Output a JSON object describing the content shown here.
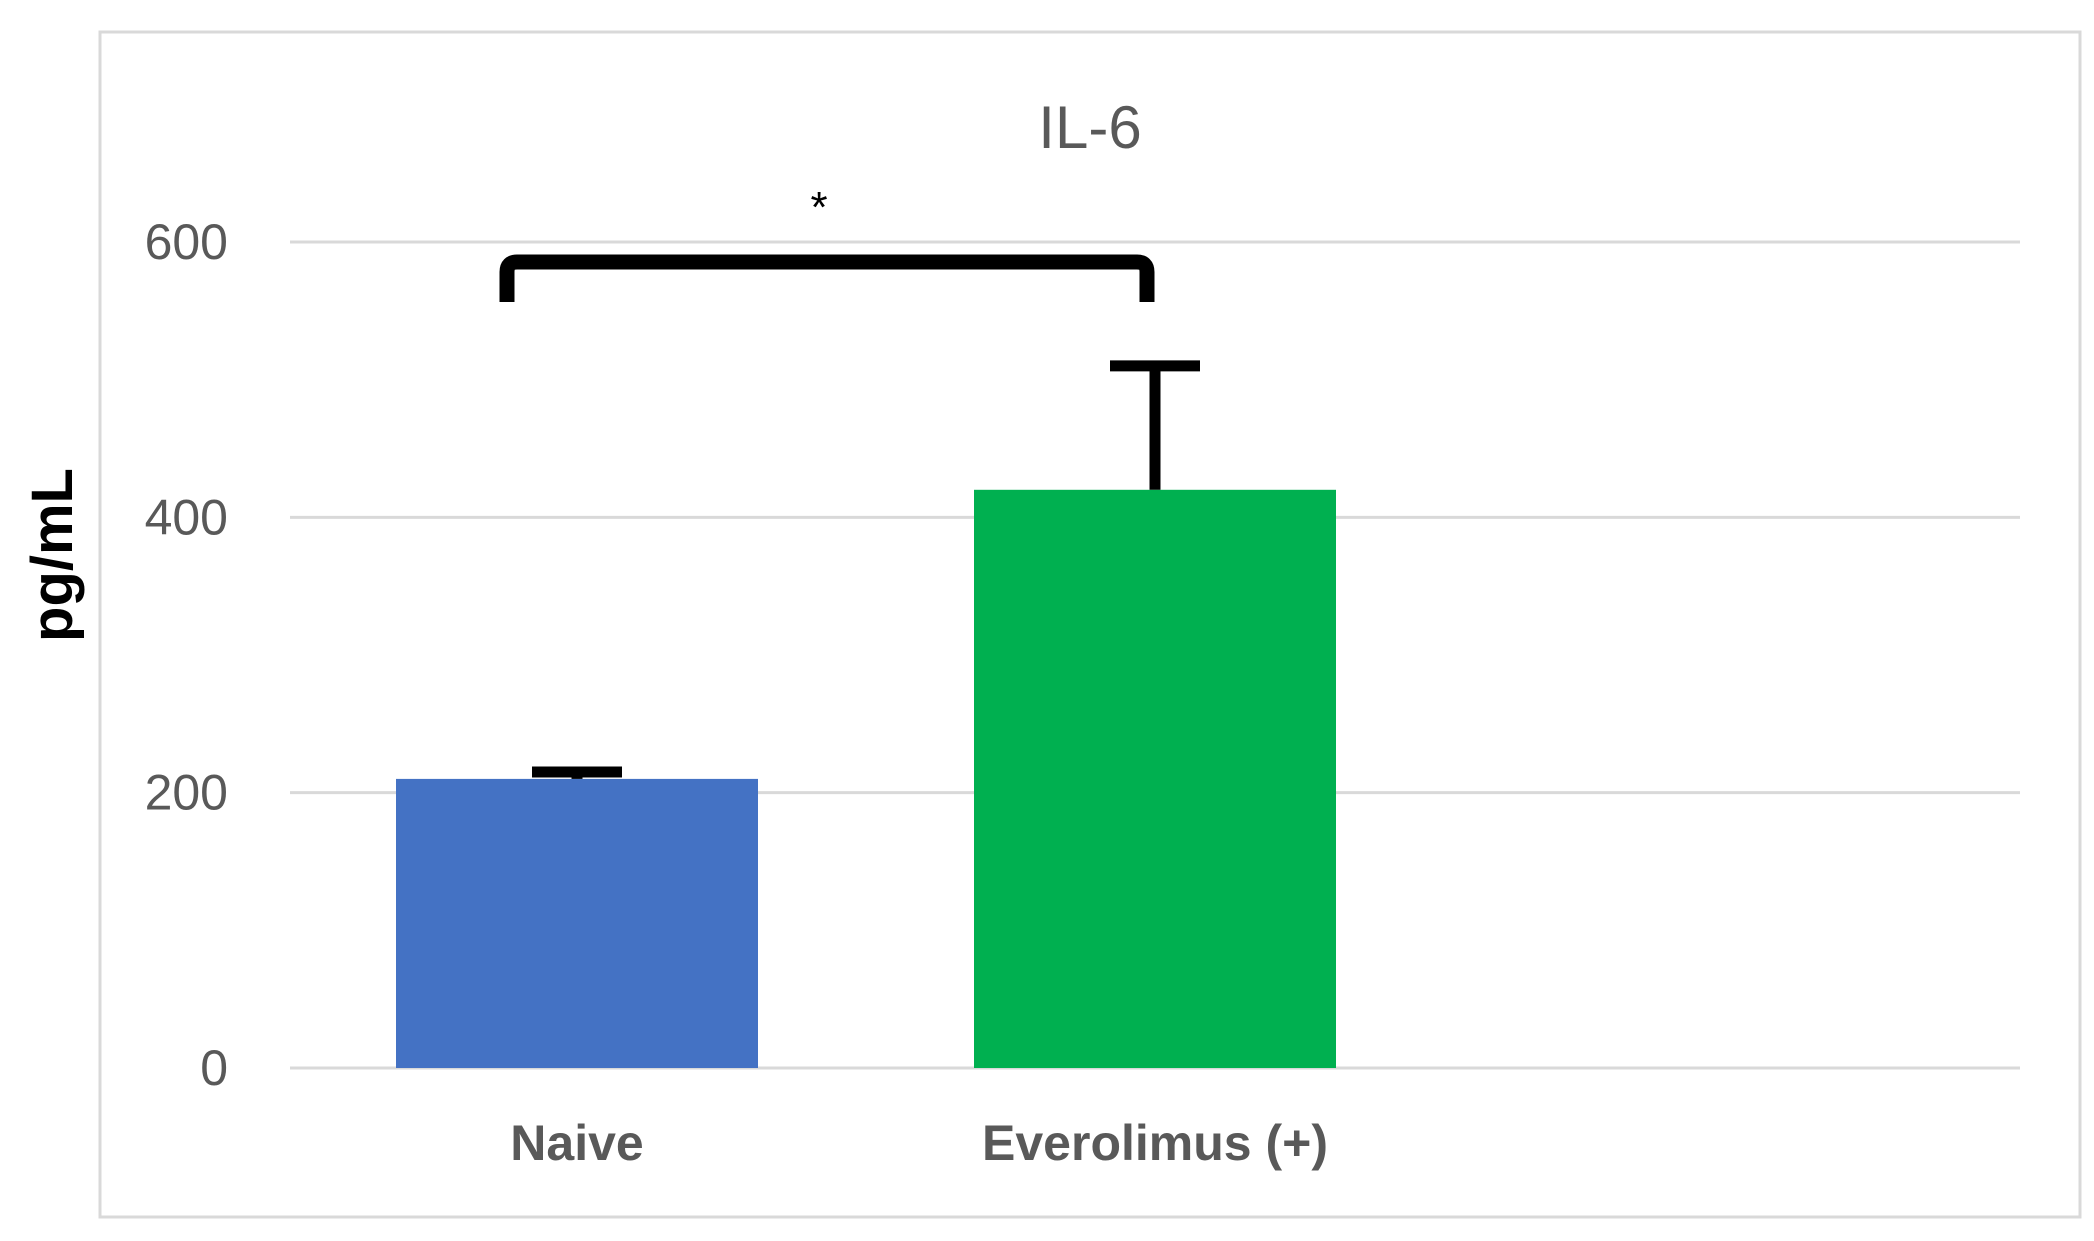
{
  "chart_data": {
    "type": "bar",
    "title": "IL-6",
    "xlabel": "",
    "ylabel": "pg/mL",
    "categories": [
      "Naive",
      "Everolimus (+)"
    ],
    "values": [
      210,
      420
    ],
    "error_plus": [
      5,
      90
    ],
    "colors": [
      "#4472C4",
      "#00B050"
    ],
    "ylim": [
      0,
      600
    ],
    "yticks": [
      0,
      200,
      400,
      600
    ],
    "grid": true,
    "legend": "none",
    "annotation": {
      "text": "*",
      "between": [
        "Naive",
        "Everolimus (+)"
      ]
    }
  }
}
